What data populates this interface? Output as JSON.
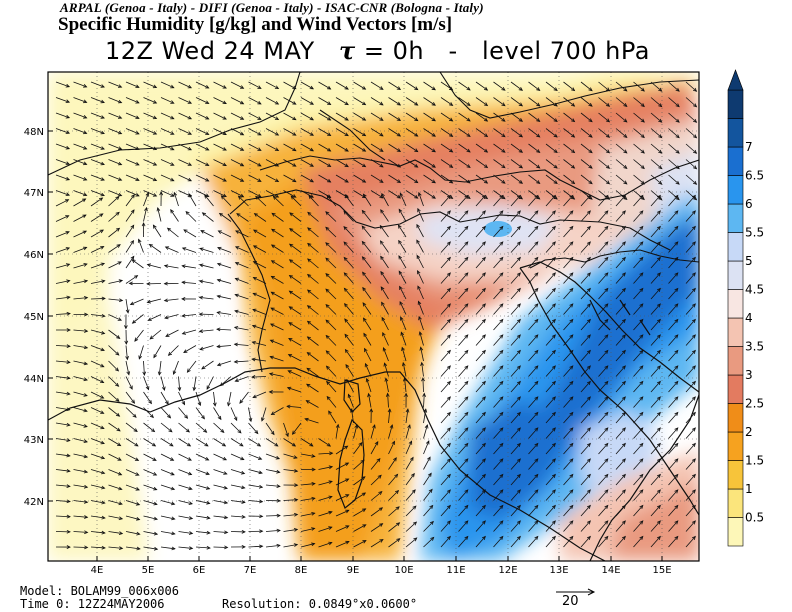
{
  "header": {
    "credits": "ARPAL (Genoa - Italy)  -  DIFI (Genoa - Italy)  -  ISAC-CNR (Bologna - Italy)",
    "title": "Specific Humidity [g/kg] and Wind Vectors [m/s]",
    "time_label": "12Z Wed 24 MAY",
    "tau_symbol": "τ",
    "tau_value": "= 0h",
    "dash": "-",
    "level_label": "level 700 hPa"
  },
  "map": {
    "lon_labels": [
      "4E",
      "5E",
      "6E",
      "7E",
      "8E",
      "9E",
      "10E",
      "11E",
      "12E",
      "13E",
      "14E",
      "15E"
    ],
    "lat_labels": [
      "48N",
      "47N",
      "46N",
      "45N",
      "44N",
      "43N",
      "42N"
    ],
    "gridlines": true
  },
  "colorbar": {
    "labels": [
      "0.5",
      "1",
      "1.5",
      "2",
      "2.5",
      "3",
      "3.5",
      "4",
      "4.5",
      "5",
      "5.5",
      "6",
      "6.5",
      "7"
    ],
    "colors": [
      "#fdf7b8",
      "#fbe57c",
      "#f7c43a",
      "#f6a21f",
      "#f08d18",
      "#e37b60",
      "#e99a80",
      "#f4c4b2",
      "#f8e6e2",
      "#dce2f3",
      "#c7d9f7",
      "#5db7f2",
      "#2995ee",
      "#1a6fd0",
      "#13559e",
      "#0e3a70"
    ],
    "units": "g/kg"
  },
  "footer": {
    "model_label": "Model: BOLAM99_006x006",
    "time_label": "Time 0: 12Z24MAY2006",
    "resolution_label": "Resolution: 0.0849°x0.0600°",
    "reference_vector": "20"
  }
}
